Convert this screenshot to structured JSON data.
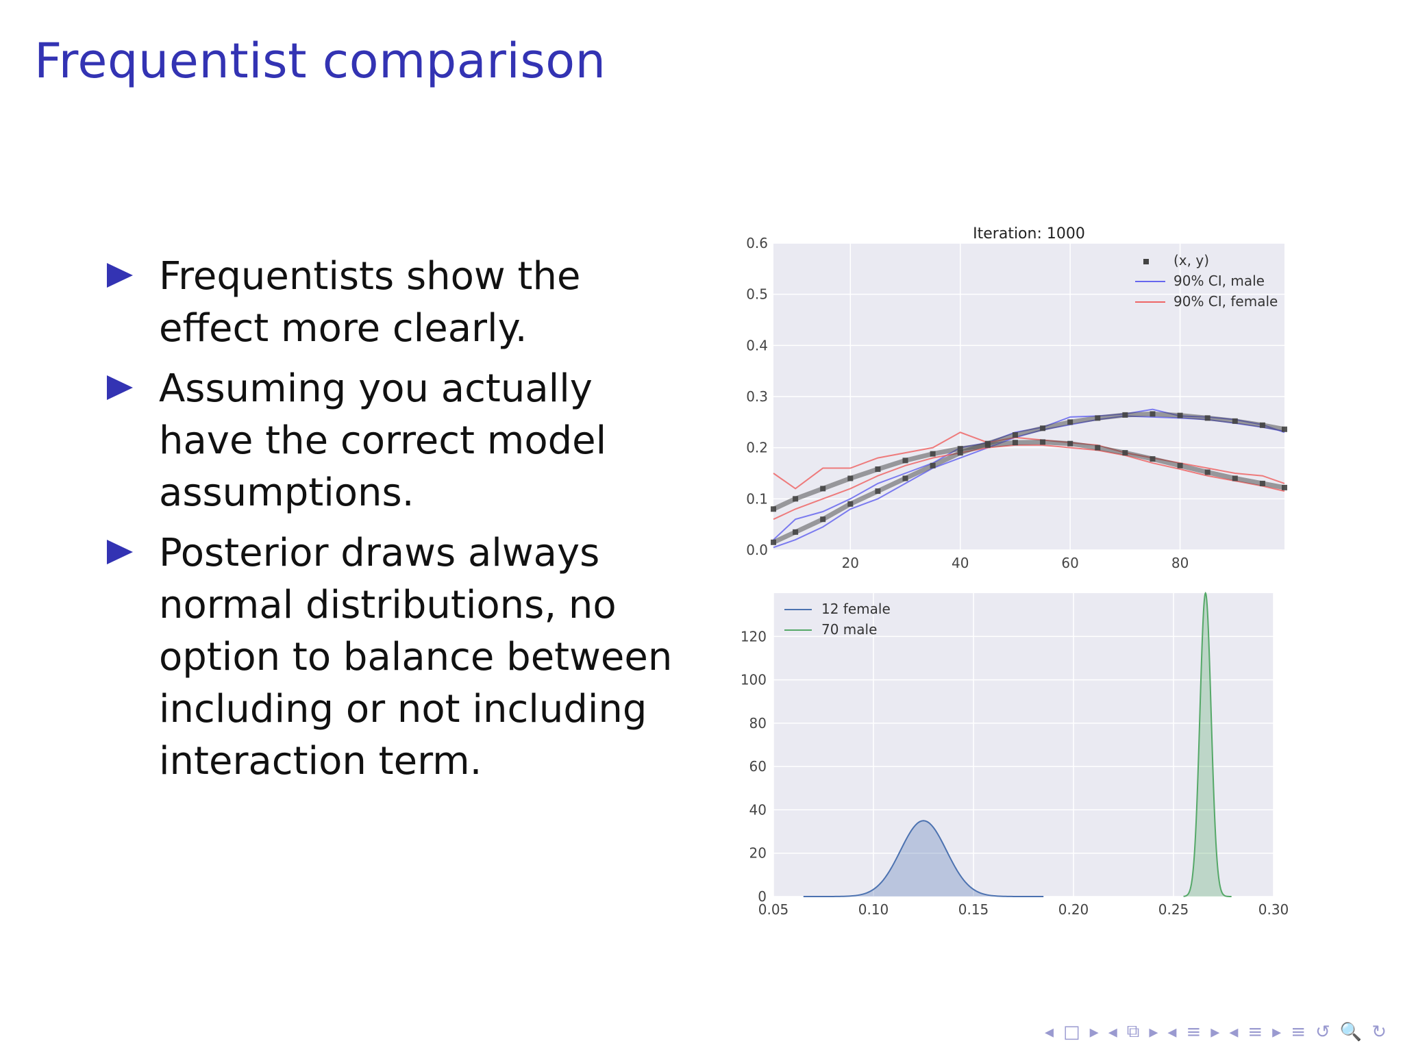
{
  "slide": {
    "title": "Frequentist comparison",
    "accent_color": "#3333b3",
    "bullets": [
      {
        "text": "Frequentists show the effect more clearly."
      },
      {
        "text": "Assuming you actually have the correct model assumptions."
      },
      {
        "text": "Posterior draws always normal distributions, no option to balance between including or not including interaction term."
      }
    ]
  },
  "nav": {
    "icons": [
      "nav-left-icon",
      "frame-icon",
      "nav-right-icon",
      "nav-left-icon",
      "subsection-icon",
      "nav-right-icon",
      "nav-left-icon",
      "section-icon",
      "nav-right-icon",
      "nav-left-icon",
      "slide-icon",
      "nav-right-icon",
      "list-icon",
      "undo-icon",
      "search-icon",
      "zoom-icon"
    ],
    "glyphs": [
      "◂",
      "□",
      "▸",
      "◂",
      "⧉",
      "▸",
      "◂",
      "≡",
      "▸",
      "◂",
      "≡",
      "▸",
      "≡",
      "↺",
      "🔍",
      "↻"
    ]
  },
  "chart_data": [
    {
      "type": "line",
      "title": "Iteration: 1000",
      "xlabel": "",
      "ylabel": "",
      "xlim": [
        6,
        99
      ],
      "ylim": [
        0,
        0.6
      ],
      "xticks": [
        "20",
        "40",
        "60",
        "80"
      ],
      "yticks": [
        "0.0",
        "0.1",
        "0.2",
        "0.3",
        "0.4",
        "0.5",
        "0.6"
      ],
      "grid": true,
      "legend_position": "top-right",
      "legend": [
        "(x, y)",
        "90% CI, male",
        "90% CI, female"
      ],
      "colors": {
        "points": "#444444",
        "male": "#6666ee",
        "female": "#ee6666",
        "background": "#eaeaf2"
      },
      "series": [
        {
          "name": "(x, y)",
          "kind": "points",
          "x": [
            6,
            10,
            15,
            20,
            25,
            30,
            35,
            40,
            45,
            50,
            55,
            60,
            65,
            70,
            75,
            80,
            85,
            90,
            95,
            99
          ],
          "y": [
            0.015,
            0.035,
            0.06,
            0.09,
            0.115,
            0.14,
            0.165,
            0.19,
            0.208,
            0.225,
            0.238,
            0.25,
            0.258,
            0.264,
            0.266,
            0.263,
            0.258,
            0.252,
            0.244,
            0.236
          ]
        },
        {
          "name": "(x, y)",
          "kind": "points",
          "x": [
            6,
            10,
            15,
            20,
            25,
            30,
            35,
            40,
            45,
            50,
            55,
            60,
            65,
            70,
            75,
            80,
            85,
            90,
            95,
            99
          ],
          "y": [
            0.08,
            0.1,
            0.12,
            0.14,
            0.158,
            0.175,
            0.188,
            0.198,
            0.205,
            0.21,
            0.211,
            0.208,
            0.2,
            0.19,
            0.178,
            0.165,
            0.152,
            0.14,
            0.13,
            0.122
          ]
        },
        {
          "name": "90% CI, male",
          "kind": "line",
          "x": [
            6,
            10,
            15,
            20,
            25,
            30,
            35,
            40,
            45,
            50,
            55,
            60,
            65,
            70,
            75,
            80,
            85,
            90,
            95,
            99
          ],
          "y": [
            0.02,
            0.06,
            0.075,
            0.1,
            0.13,
            0.15,
            0.17,
            0.2,
            0.21,
            0.23,
            0.24,
            0.26,
            0.262,
            0.266,
            0.275,
            0.262,
            0.26,
            0.255,
            0.245,
            0.23
          ]
        },
        {
          "name": "90% CI, male",
          "kind": "line",
          "x": [
            6,
            10,
            15,
            20,
            25,
            30,
            35,
            40,
            45,
            50,
            55,
            60,
            65,
            70,
            75,
            80,
            85,
            90,
            95,
            99
          ],
          "y": [
            0.005,
            0.02,
            0.045,
            0.08,
            0.1,
            0.13,
            0.16,
            0.18,
            0.2,
            0.22,
            0.235,
            0.245,
            0.255,
            0.262,
            0.26,
            0.258,
            0.255,
            0.248,
            0.24,
            0.232
          ]
        },
        {
          "name": "90% CI, female",
          "kind": "line",
          "x": [
            6,
            10,
            15,
            20,
            25,
            30,
            35,
            40,
            45,
            50,
            55,
            60,
            65,
            70,
            75,
            80,
            85,
            90,
            95,
            99
          ],
          "y": [
            0.15,
            0.12,
            0.16,
            0.16,
            0.18,
            0.19,
            0.2,
            0.23,
            0.21,
            0.22,
            0.215,
            0.21,
            0.205,
            0.19,
            0.18,
            0.17,
            0.16,
            0.15,
            0.145,
            0.13
          ]
        },
        {
          "name": "90% CI, female",
          "kind": "line",
          "x": [
            6,
            10,
            15,
            20,
            25,
            30,
            35,
            40,
            45,
            50,
            55,
            60,
            65,
            70,
            75,
            80,
            85,
            90,
            95,
            99
          ],
          "y": [
            0.06,
            0.08,
            0.1,
            0.12,
            0.145,
            0.165,
            0.18,
            0.19,
            0.2,
            0.205,
            0.205,
            0.2,
            0.195,
            0.185,
            0.17,
            0.158,
            0.145,
            0.135,
            0.125,
            0.115
          ]
        }
      ]
    },
    {
      "type": "area",
      "title": "",
      "xlabel": "",
      "ylabel": "",
      "xlim": [
        0.05,
        0.3
      ],
      "ylim": [
        0,
        140
      ],
      "xticks": [
        "0.05",
        "0.10",
        "0.15",
        "0.20",
        "0.25",
        "0.30"
      ],
      "yticks": [
        "0",
        "20",
        "40",
        "60",
        "80",
        "100",
        "120"
      ],
      "grid": true,
      "legend_position": "top-left",
      "legend": [
        "12 female",
        "70 male"
      ],
      "colors": {
        "female": "#4c72b0",
        "male": "#55a868",
        "background": "#eaeaf2"
      },
      "series": [
        {
          "name": "12 female",
          "mean": 0.125,
          "sd": 0.0115,
          "peak": 35,
          "range": [
            0.065,
            0.185
          ]
        },
        {
          "name": "70 male",
          "mean": 0.266,
          "sd": 0.0028,
          "peak": 140,
          "range": [
            0.255,
            0.279
          ]
        }
      ]
    }
  ]
}
